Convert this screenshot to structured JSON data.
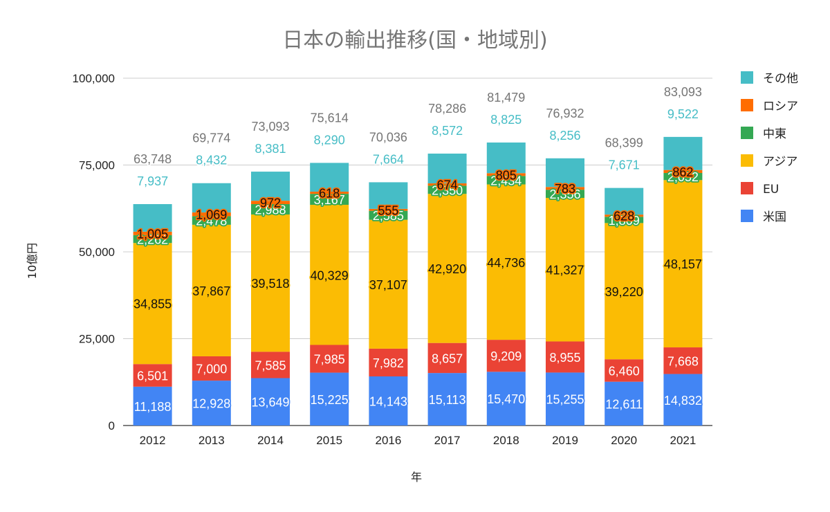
{
  "chart_data": {
    "type": "bar",
    "stacked": true,
    "title": "日本の輸出推移(国・地域別)",
    "xlabel": "年",
    "ylabel": "10億円",
    "ylim": [
      0,
      100000
    ],
    "yticks": [
      0,
      25000,
      50000,
      75000,
      100000
    ],
    "ytick_labels": [
      "0",
      "25,000",
      "50,000",
      "75,000",
      "100,000"
    ],
    "grid": true,
    "legend_position": "right",
    "categories": [
      "2012",
      "2013",
      "2014",
      "2015",
      "2016",
      "2017",
      "2018",
      "2019",
      "2020",
      "2021"
    ],
    "series": [
      {
        "name": "米国",
        "color": "#4285f4",
        "label_color": "#ffffff",
        "values": [
          11188,
          12928,
          13649,
          15225,
          14143,
          15113,
          15470,
          15255,
          12611,
          14832
        ],
        "labels": [
          "11,188",
          "12,928",
          "13,649",
          "15,225",
          "14,143",
          "15,113",
          "15,470",
          "15,255",
          "12,611",
          "14,832"
        ]
      },
      {
        "name": "EU",
        "color": "#ea4335",
        "label_color": "#ffffff",
        "values": [
          6501,
          7000,
          7585,
          7985,
          7982,
          8657,
          9209,
          8955,
          6460,
          7668
        ],
        "labels": [
          "6,501",
          "7,000",
          "7,585",
          "7,985",
          "7,982",
          "8,657",
          "9,209",
          "8,955",
          "6,460",
          "7,668"
        ]
      },
      {
        "name": "アジア",
        "color": "#fbbc04",
        "label_color": "#111111",
        "values": [
          34855,
          37867,
          39518,
          40329,
          37107,
          42920,
          44736,
          41327,
          39220,
          48157
        ],
        "labels": [
          "34,855",
          "37,867",
          "39,518",
          "40,329",
          "37,107",
          "42,920",
          "44,736",
          "41,327",
          "39,220",
          "48,157"
        ]
      },
      {
        "name": "中東",
        "color": "#34a853",
        "label_color": "#ffffff",
        "values": [
          2262,
          2478,
          2988,
          3167,
          2585,
          2350,
          2434,
          2356,
          1809,
          2052
        ],
        "labels": [
          "2,262",
          "2,478",
          "2,988",
          "3,167",
          "2,585",
          "2,350",
          "2,434",
          "2,356",
          "1,809",
          "2,052"
        ]
      },
      {
        "name": "ロシア",
        "color": "#ff6d01",
        "label_color": "#111111",
        "values": [
          1005,
          1069,
          972,
          618,
          555,
          674,
          805,
          783,
          628,
          862
        ],
        "labels": [
          "1,005",
          "1,069",
          "972",
          "618",
          "555",
          "674",
          "805",
          "783",
          "628",
          "862"
        ]
      },
      {
        "name": "その他",
        "color": "#46bdc6",
        "label_color": "#46bdc6",
        "values": [
          7937,
          8432,
          8381,
          8290,
          7664,
          8572,
          8825,
          8256,
          7671,
          9522
        ],
        "labels": [
          "7,937",
          "8,432",
          "8,381",
          "8,290",
          "7,664",
          "8,572",
          "8,825",
          "8,256",
          "7,671",
          "9,522"
        ]
      }
    ],
    "totals": [
      63748,
      69774,
      73093,
      75614,
      70036,
      78286,
      81479,
      76932,
      68399,
      83093
    ],
    "total_labels": [
      "63,748",
      "69,774",
      "73,093",
      "75,614",
      "70,036",
      "78,286",
      "81,479",
      "76,932",
      "68,399",
      "83,093"
    ],
    "total_label_color": "#757575",
    "legend_order": [
      "その他",
      "ロシア",
      "中東",
      "アジア",
      "EU",
      "米国"
    ]
  }
}
